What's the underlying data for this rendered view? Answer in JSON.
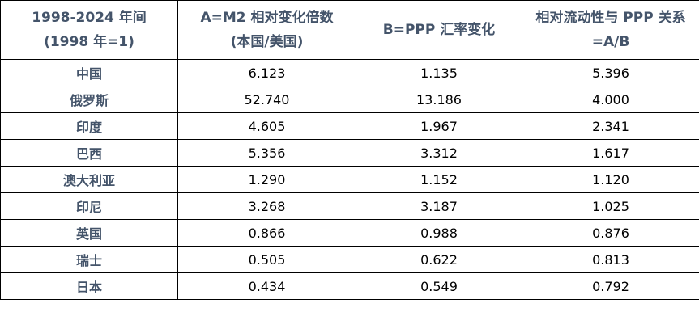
{
  "table": {
    "headers": [
      "1998-2024 年间\n(1998 年=1)",
      "A=M2 相对变化倍数\n(本国/美国)",
      "B=PPP 汇率变化",
      "相对流动性与 PPP 关系\n=A/B"
    ],
    "rows": [
      {
        "country": "中国",
        "a": "6.123",
        "b": "1.135",
        "ratio": "5.396"
      },
      {
        "country": "俄罗斯",
        "a": "52.740",
        "b": "13.186",
        "ratio": "4.000"
      },
      {
        "country": "印度",
        "a": "4.605",
        "b": "1.967",
        "ratio": "2.341"
      },
      {
        "country": "巴西",
        "a": "5.356",
        "b": "3.312",
        "ratio": "1.617"
      },
      {
        "country": "澳大利亚",
        "a": "1.290",
        "b": "1.152",
        "ratio": "1.120"
      },
      {
        "country": "印尼",
        "a": "3.268",
        "b": "3.187",
        "ratio": "1.025"
      },
      {
        "country": "英国",
        "a": "0.866",
        "b": "0.988",
        "ratio": "0.876"
      },
      {
        "country": "瑞士",
        "a": "0.505",
        "b": "0.622",
        "ratio": "0.813"
      },
      {
        "country": "日本",
        "a": "0.434",
        "b": "0.549",
        "ratio": "0.792"
      }
    ]
  }
}
